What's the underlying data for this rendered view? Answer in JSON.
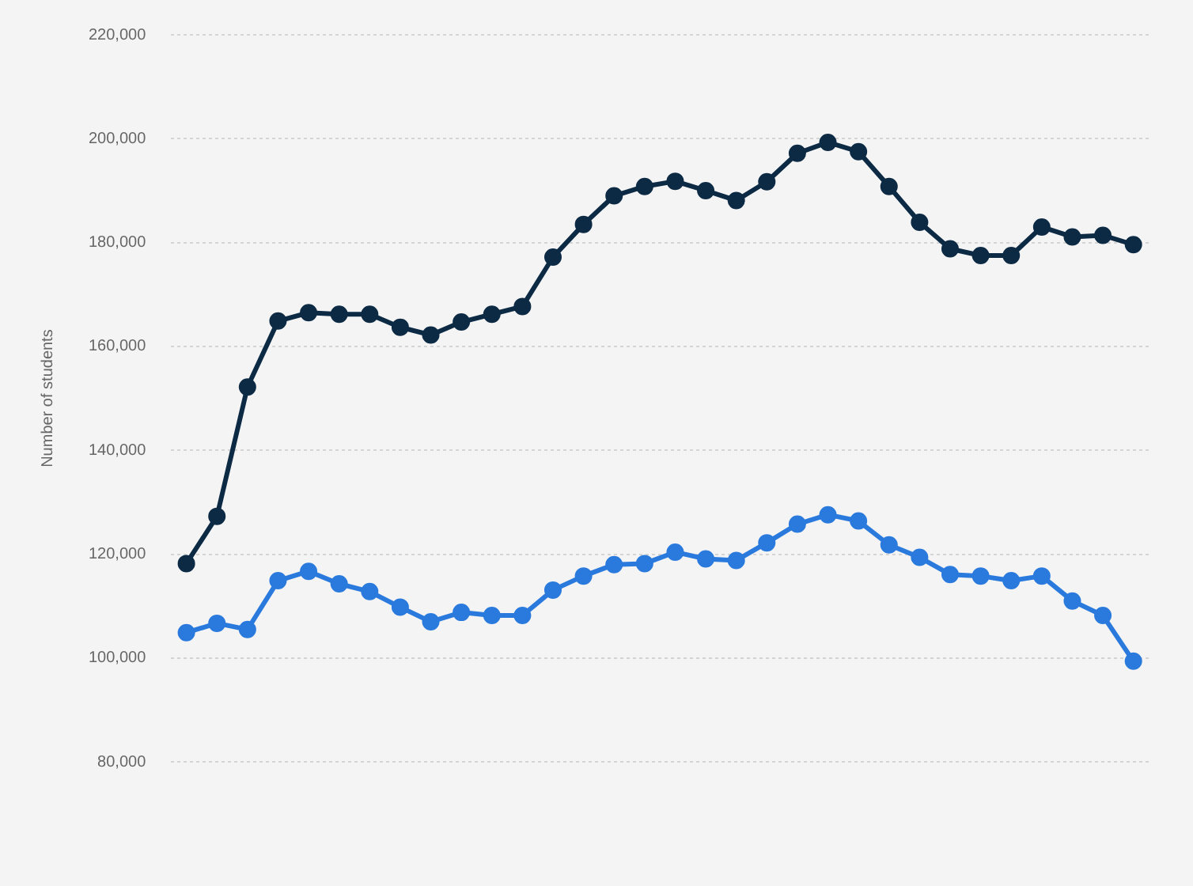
{
  "chart_data": {
    "type": "line",
    "ylabel": "Number of students",
    "categories": [
      null,
      null,
      null,
      null,
      null,
      null,
      null,
      null,
      null,
      null,
      null,
      null,
      null,
      null,
      null,
      null,
      null,
      null,
      null,
      null,
      null,
      null,
      null,
      null,
      null,
      null,
      null,
      null,
      null,
      null,
      null,
      null
    ],
    "series": [
      {
        "color": "#0d2a45",
        "values": [
          118200,
          127300,
          152200,
          164900,
          166500,
          166200,
          166200,
          163700,
          162200,
          164700,
          166200,
          167700,
          177200,
          183500,
          189000,
          190800,
          191800,
          190000,
          188100,
          191700,
          197200,
          199300,
          197500,
          190800,
          183900,
          178800,
          177500,
          177500,
          183000,
          181100,
          181400,
          179600
        ]
      },
      {
        "color": "#2a7ade",
        "values": [
          104900,
          106700,
          105500,
          114900,
          116700,
          114300,
          112800,
          109800,
          107000,
          108800,
          108200,
          108200,
          113100,
          115800,
          118000,
          118200,
          120400,
          119100,
          118800,
          122200,
          125800,
          127600,
          126400,
          121800,
          119400,
          116100,
          115800,
          114900,
          115800,
          111000,
          108200,
          99400
        ]
      }
    ],
    "ylim": [
      80000,
      220000
    ],
    "yticks": [
      {
        "value": 80000,
        "label": "80,000"
      },
      {
        "value": 100000,
        "label": "100,000"
      },
      {
        "value": 120000,
        "label": "120,000"
      },
      {
        "value": 140000,
        "label": "140,000"
      },
      {
        "value": 160000,
        "label": "160,000"
      },
      {
        "value": 180000,
        "label": "180,000"
      },
      {
        "value": 200000,
        "label": "200,000"
      },
      {
        "value": 220000,
        "label": "220,000"
      }
    ],
    "grid": "y",
    "legend": false,
    "marker": "circle",
    "line_style": "solid"
  }
}
